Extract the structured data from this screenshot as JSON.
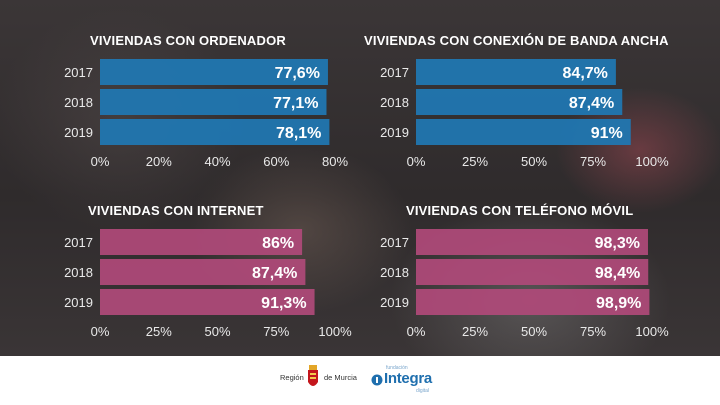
{
  "chart_data": [
    {
      "type": "bar",
      "orientation": "horizontal",
      "title": "VIVIENDAS CON ORDENADOR",
      "categories": [
        "2017",
        "2018",
        "2019"
      ],
      "values": [
        77.6,
        77.1,
        78.1
      ],
      "labels": [
        "77,6%",
        "77,1%",
        "78,1%"
      ],
      "xlim": [
        0,
        80
      ],
      "ticks": [
        "0%",
        "20%",
        "40%",
        "60%",
        "80%"
      ],
      "color": "#1f78b4"
    },
    {
      "type": "bar",
      "orientation": "horizontal",
      "title": "VIVIENDAS CON CONEXIÓN DE BANDA ANCHA",
      "categories": [
        "2017",
        "2018",
        "2019"
      ],
      "values": [
        84.7,
        87.4,
        91
      ],
      "labels": [
        "84,7%",
        "87,4%",
        "91%"
      ],
      "xlim": [
        0,
        100
      ],
      "ticks": [
        "0%",
        "25%",
        "50%",
        "75%",
        "100%"
      ],
      "color": "#1f78b4"
    },
    {
      "type": "bar",
      "orientation": "horizontal",
      "title": "VIVIENDAS CON INTERNET",
      "categories": [
        "2017",
        "2018",
        "2019"
      ],
      "values": [
        86,
        87.4,
        91.3
      ],
      "labels": [
        "86%",
        "87,4%",
        "91,3%"
      ],
      "xlim": [
        0,
        100
      ],
      "ticks": [
        "0%",
        "25%",
        "50%",
        "75%",
        "100%"
      ],
      "color": "#b04a7a"
    },
    {
      "type": "bar",
      "orientation": "horizontal",
      "title": "VIVIENDAS CON TELÉFONO MÓVIL",
      "categories": [
        "2017",
        "2018",
        "2019"
      ],
      "values": [
        98.3,
        98.4,
        98.9
      ],
      "labels": [
        "98,3%",
        "98,4%",
        "98,9%"
      ],
      "xlim": [
        0,
        100
      ],
      "ticks": [
        "0%",
        "25%",
        "50%",
        "75%",
        "100%"
      ],
      "color": "#b04a7a"
    }
  ],
  "footer": {
    "region_left": "Región",
    "region_right": "de Murcia",
    "integra": "Integra",
    "integra_top": "fundación",
    "integra_bottom": "digital"
  }
}
